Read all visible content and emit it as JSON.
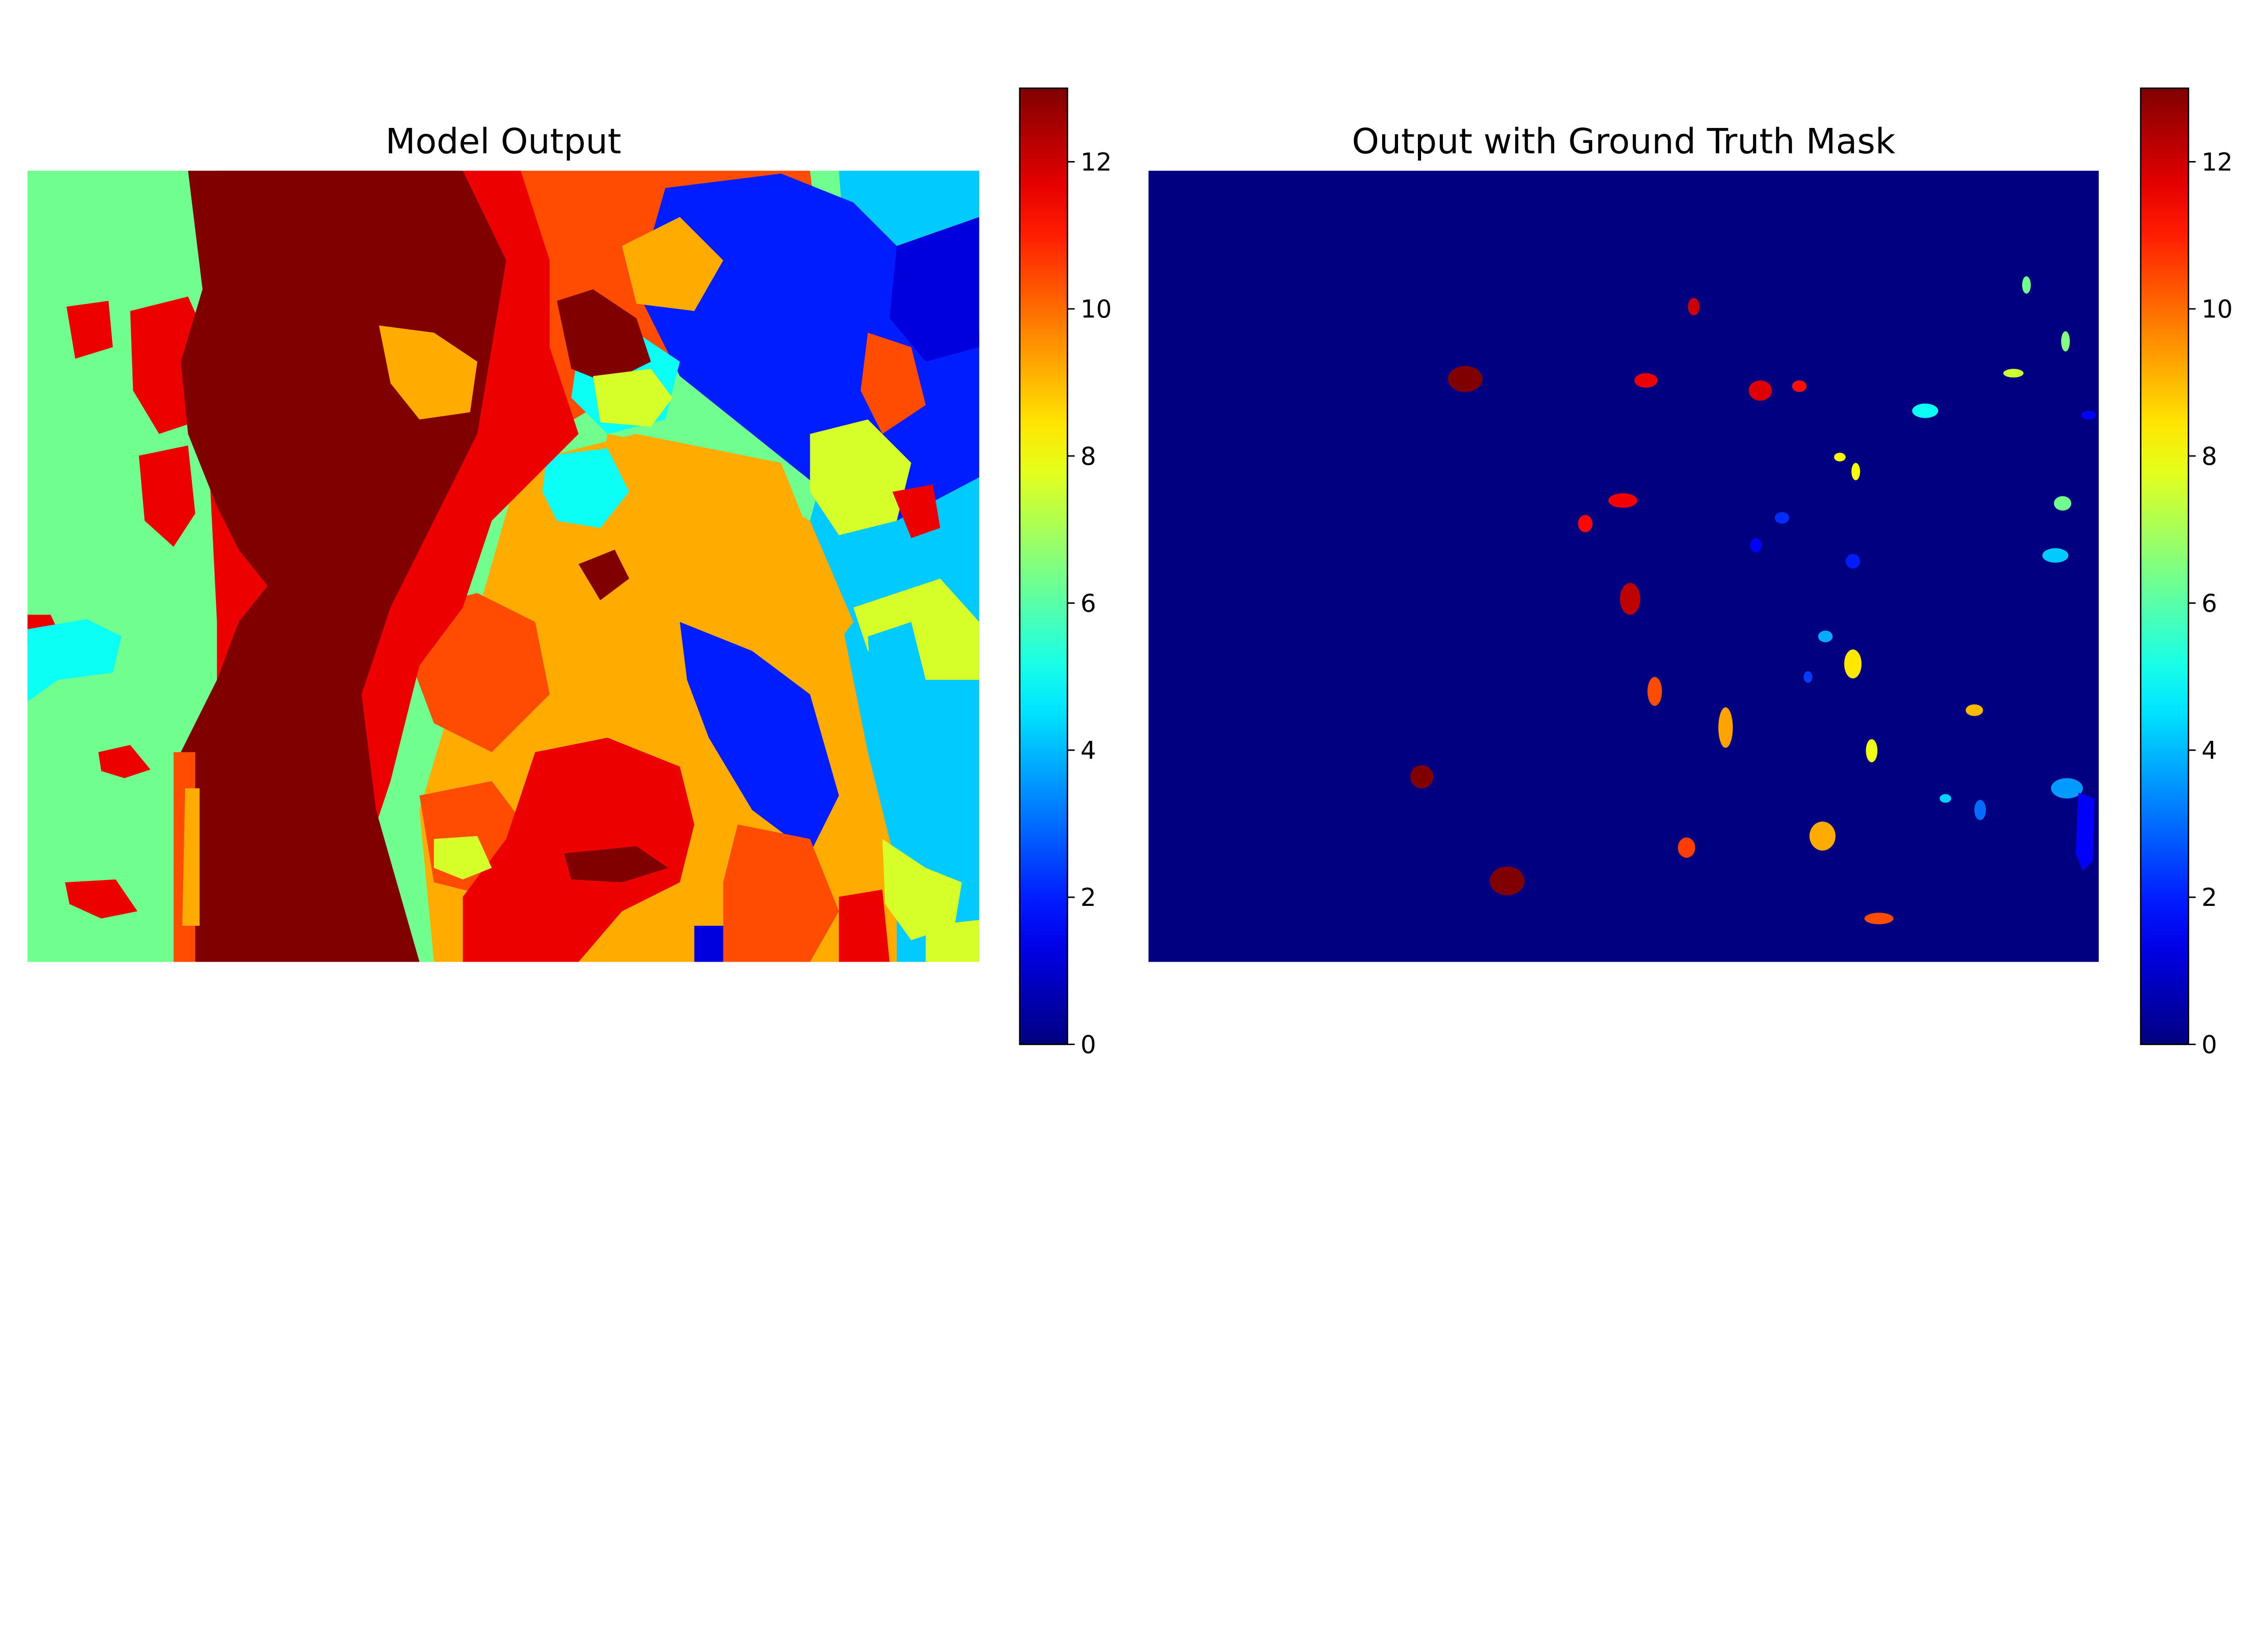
{
  "colors": {
    "jet_dark_blue": "#00007f",
    "jet_dark_red": "#7f0000",
    "background": "#ffffff"
  },
  "chart_data": [
    {
      "type": "heatmap",
      "title": "Model Output",
      "colormap": "jet",
      "axes": "off",
      "colorbar": {
        "vmin": 0,
        "vmax": 13,
        "ticks": [
          0,
          2,
          4,
          6,
          8,
          10,
          12
        ]
      },
      "regions": [
        {
          "label": "left-band",
          "value": 6.3
        },
        {
          "label": "central-mass",
          "value": 13
        },
        {
          "label": "red-belt",
          "value": 11.6
        },
        {
          "label": "orange-zone",
          "value": 10.4
        },
        {
          "label": "yellow-zone",
          "value": 9.2
        },
        {
          "label": "blue-cluster",
          "value": 2.0
        },
        {
          "label": "light-blue-cluster",
          "value": 4.2
        },
        {
          "label": "cyan-patch",
          "value": 5.0
        },
        {
          "label": "navy-edge",
          "value": 1.2
        },
        {
          "label": "yellowgreen-patch",
          "value": 7.6
        }
      ]
    },
    {
      "type": "heatmap",
      "title": "Output with Ground Truth Mask",
      "colormap": "jet",
      "axes": "off",
      "background_value": 0,
      "colorbar": {
        "vmin": 0,
        "vmax": 13,
        "ticks": [
          0,
          2,
          4,
          6,
          8,
          10,
          12
        ]
      },
      "blobs": [
        {
          "value": 13
        },
        {
          "value": 11.6
        },
        {
          "value": 11.8
        },
        {
          "value": 11.2
        },
        {
          "value": 12.0
        },
        {
          "value": 5.0
        },
        {
          "value": 8.2
        },
        {
          "value": 8.0
        },
        {
          "value": 7.5
        },
        {
          "value": 6.5
        },
        {
          "value": 6.3
        },
        {
          "value": 4.2
        },
        {
          "value": 3.8
        },
        {
          "value": 2.2
        },
        {
          "value": 2.0
        },
        {
          "value": 11.5
        },
        {
          "value": 11.3
        },
        {
          "value": 12.2
        },
        {
          "value": 13
        },
        {
          "value": 10.4
        },
        {
          "value": 9.2
        },
        {
          "value": 8.4
        },
        {
          "value": 9.0
        },
        {
          "value": 3.6
        },
        {
          "value": 3.0
        },
        {
          "value": 1.6
        },
        {
          "value": 1.6
        },
        {
          "value": 10.6
        },
        {
          "value": 9.3
        },
        {
          "value": 13
        },
        {
          "value": 10.4
        },
        {
          "value": 7.9
        },
        {
          "value": 6.3
        },
        {
          "value": 4.3
        },
        {
          "value": 2.4
        }
      ]
    }
  ]
}
